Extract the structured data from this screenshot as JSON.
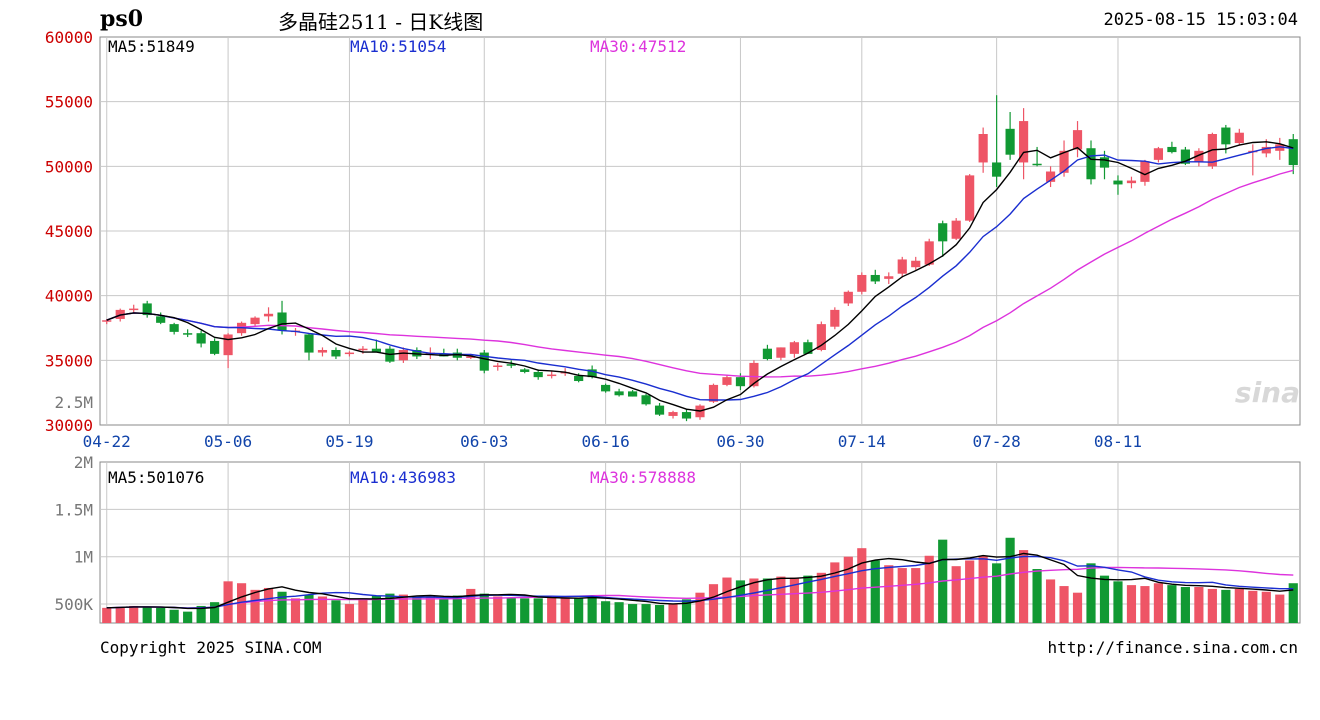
{
  "header": {
    "symbol": "ps0",
    "title": "多晶硅2511 - 日K线图",
    "timestamp": "2025-08-15 15:03:04"
  },
  "price_ma": {
    "ma5": "MA5:51849",
    "ma10": "MA10:51054",
    "ma30": "MA30:47512"
  },
  "volume_ma": {
    "ma5": "MA5:501076",
    "ma10": "MA10:436983",
    "ma30": "MA30:578888"
  },
  "footer": {
    "copyright": "Copyright 2025 SINA.COM",
    "url": "http://finance.sina.com.cn"
  },
  "watermark": "sina",
  "colors": {
    "up": "#ee5566",
    "down": "#119933",
    "ma5": "#000000",
    "ma10": "#1a2ed0",
    "ma30": "#dd33dd",
    "axis_price": "#cc0000",
    "axis_date": "#1144aa",
    "grid": "#c8c8c8"
  },
  "chart_data": {
    "type": "candlestick",
    "price_axis": {
      "ticks": [
        "60000",
        "55000",
        "50000",
        "45000",
        "40000",
        "35000",
        "30000"
      ],
      "range": [
        30000,
        60000
      ]
    },
    "volume_axis": {
      "ticks": [
        "2M",
        "1.5M",
        "1M",
        "500K"
      ],
      "range": [
        300000,
        2000000
      ]
    },
    "volume_axis_top_label": "2.5M",
    "date_labels": [
      "04-22",
      "05-06",
      "05-19",
      "06-03",
      "06-16",
      "06-30",
      "07-14",
      "07-28",
      "08-11"
    ],
    "date_label_bar_index": [
      0,
      9,
      18,
      28,
      37,
      47,
      56,
      66,
      75
    ],
    "candles": [
      [
        38050,
        38200,
        37800,
        38100,
        460000
      ],
      [
        38200,
        39000,
        38000,
        38900,
        470000
      ],
      [
        38900,
        39300,
        38600,
        39000,
        480000
      ],
      [
        39400,
        39600,
        38300,
        38500,
        470000
      ],
      [
        38400,
        38700,
        37800,
        37900,
        460000
      ],
      [
        37800,
        37900,
        37000,
        37200,
        440000
      ],
      [
        37100,
        37400,
        36800,
        37000,
        420000
      ],
      [
        37100,
        37300,
        36000,
        36300,
        480000
      ],
      [
        36500,
        36700,
        35400,
        35500,
        520000
      ],
      [
        35400,
        37100,
        34400,
        37000,
        740000
      ],
      [
        37100,
        38000,
        36900,
        37900,
        720000
      ],
      [
        37800,
        38400,
        37600,
        38300,
        650000
      ],
      [
        38400,
        39100,
        38000,
        38600,
        670000
      ],
      [
        38700,
        39600,
        37000,
        37300,
        630000
      ],
      [
        37200,
        37500,
        36900,
        37300,
        560000
      ],
      [
        37000,
        37100,
        35000,
        35600,
        600000
      ],
      [
        35600,
        36000,
        35300,
        35800,
        580000
      ],
      [
        35800,
        36000,
        35100,
        35300,
        540000
      ],
      [
        35500,
        35700,
        35300,
        35600,
        500000
      ],
      [
        35800,
        36100,
        35500,
        35900,
        560000
      ],
      [
        35900,
        36600,
        35700,
        35600,
        590000
      ],
      [
        35900,
        36100,
        34800,
        34900,
        610000
      ],
      [
        35000,
        36000,
        34800,
        35800,
        600000
      ],
      [
        35800,
        36000,
        35100,
        35300,
        570000
      ],
      [
        35500,
        36000,
        35100,
        35600,
        580000
      ],
      [
        35500,
        35900,
        35300,
        35300,
        550000
      ],
      [
        35600,
        35900,
        35000,
        35200,
        590000
      ],
      [
        35300,
        35500,
        35100,
        35300,
        660000
      ],
      [
        35600,
        35800,
        34000,
        34200,
        610000
      ],
      [
        34500,
        34800,
        34200,
        34600,
        580000
      ],
      [
        34700,
        35000,
        34400,
        34600,
        570000
      ],
      [
        34300,
        34400,
        34000,
        34100,
        560000
      ],
      [
        34100,
        34300,
        33500,
        33700,
        560000
      ],
      [
        33800,
        34200,
        33600,
        33900,
        570000
      ],
      [
        34000,
        34400,
        33800,
        34100,
        560000
      ],
      [
        33800,
        34000,
        33300,
        33400,
        560000
      ],
      [
        34300,
        34600,
        33600,
        33700,
        590000
      ],
      [
        33100,
        33200,
        32500,
        32600,
        530000
      ],
      [
        32600,
        32800,
        32200,
        32300,
        520000
      ],
      [
        32600,
        32700,
        32200,
        32200,
        500000
      ],
      [
        32300,
        32400,
        31500,
        31600,
        500000
      ],
      [
        31500,
        31700,
        30700,
        30800,
        490000
      ],
      [
        30700,
        31100,
        30500,
        31000,
        500000
      ],
      [
        31000,
        31200,
        30300,
        30500,
        550000
      ],
      [
        30600,
        31600,
        30400,
        31500,
        620000
      ],
      [
        31800,
        33200,
        31700,
        33100,
        710000
      ],
      [
        33100,
        33900,
        33000,
        33700,
        780000
      ],
      [
        33700,
        34000,
        32700,
        33000,
        750000
      ],
      [
        33000,
        35000,
        32900,
        34800,
        770000
      ],
      [
        35900,
        36200,
        35000,
        35100,
        770000
      ],
      [
        35200,
        36000,
        35000,
        36000,
        790000
      ],
      [
        35500,
        36500,
        35200,
        36400,
        780000
      ],
      [
        36400,
        36600,
        35500,
        35500,
        800000
      ],
      [
        35800,
        38000,
        35700,
        37800,
        830000
      ],
      [
        37600,
        39100,
        37400,
        38900,
        940000
      ],
      [
        39400,
        40400,
        39200,
        40300,
        1000000
      ],
      [
        40300,
        41800,
        40100,
        41600,
        1090000
      ],
      [
        41600,
        42000,
        40900,
        41100,
        960000
      ],
      [
        41300,
        41800,
        40900,
        41500,
        910000
      ],
      [
        41700,
        43000,
        41400,
        42800,
        880000
      ],
      [
        42200,
        43000,
        42000,
        42700,
        880000
      ],
      [
        42400,
        44400,
        42300,
        44200,
        1010000
      ],
      [
        45600,
        45800,
        43000,
        44200,
        1180000
      ],
      [
        44400,
        46000,
        44300,
        45800,
        900000
      ],
      [
        45800,
        49400,
        45700,
        49300,
        960000
      ],
      [
        50300,
        53000,
        49500,
        52500,
        1010000
      ],
      [
        50300,
        55500,
        48400,
        49200,
        930000
      ],
      [
        52900,
        54200,
        50500,
        50900,
        1200000
      ],
      [
        50300,
        54500,
        49000,
        53500,
        1070000
      ],
      [
        50200,
        51500,
        50000,
        50100,
        870000
      ],
      [
        48800,
        50000,
        48400,
        49600,
        760000
      ],
      [
        49500,
        52000,
        49200,
        51200,
        690000
      ],
      [
        51300,
        53500,
        50700,
        52800,
        620000
      ],
      [
        51400,
        52000,
        48600,
        49000,
        930000
      ],
      [
        50700,
        51200,
        49000,
        49900,
        800000
      ],
      [
        48900,
        49300,
        47800,
        48600,
        740000
      ],
      [
        48700,
        49200,
        48300,
        48900,
        700000
      ],
      [
        48800,
        50500,
        48500,
        50400,
        690000
      ],
      [
        50500,
        51500,
        50300,
        51400,
        720000
      ],
      [
        51500,
        51900,
        51000,
        51100,
        700000
      ],
      [
        51300,
        51500,
        50100,
        50200,
        680000
      ],
      [
        50300,
        51400,
        50000,
        51200,
        680000
      ],
      [
        50000,
        52600,
        49800,
        52500,
        660000
      ],
      [
        53000,
        53200,
        51000,
        51700,
        650000
      ],
      [
        51800,
        52900,
        51600,
        52600,
        660000
      ],
      [
        51100,
        51700,
        49300,
        51200,
        640000
      ],
      [
        51000,
        52100,
        50700,
        51500,
        630000
      ],
      [
        51200,
        52200,
        50500,
        51700,
        600000
      ],
      [
        52100,
        52500,
        49400,
        50100,
        720000
      ]
    ]
  }
}
